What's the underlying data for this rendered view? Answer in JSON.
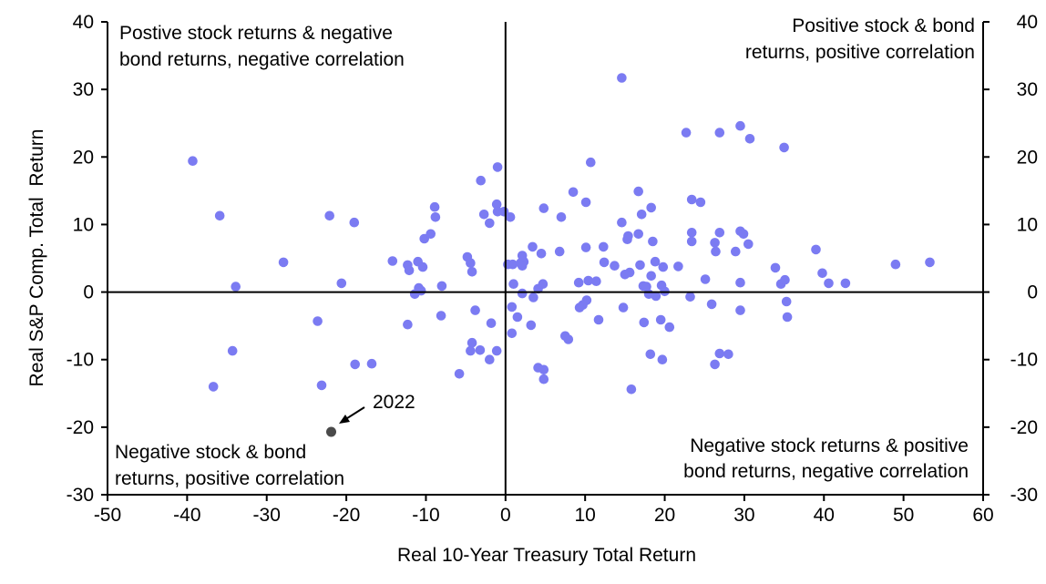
{
  "chart_data": {
    "type": "scatter",
    "title": "",
    "xlabel": "Real 10-Year Treasury Total Return",
    "ylabel": "Real S&P Comp. Total  Return",
    "xlim": [
      -50,
      60
    ],
    "ylim": [
      -30,
      40
    ],
    "x_ticks": [
      "-50",
      "-40",
      "-30",
      "-20",
      "-10",
      "0",
      "10",
      "20",
      "30",
      "40",
      "50",
      "60"
    ],
    "y_ticks": [
      "40",
      "30",
      "20",
      "10",
      "0",
      "-10",
      "-20",
      "-30"
    ],
    "y_ticks_right": [
      "40",
      "30",
      "20",
      "10",
      "0",
      "-10",
      "-20",
      "-30"
    ],
    "grid": false,
    "colors": {
      "points": "#7B7BF2",
      "highlight": "#4a4a4a",
      "axis": "#000000"
    },
    "quadrant_labels": {
      "top_left": [
        "Postive stock returns & negative",
        "bond returns, negative correlation"
      ],
      "top_right": [
        "Positive stock & bond",
        "returns, positive correlation"
      ],
      "bottom_left": [
        "Negative stock & bond",
        "returns, positive correlation"
      ],
      "bottom_right": [
        "Negative stock returns & positive",
        "bond returns, negative correlation"
      ]
    },
    "highlight": {
      "label": "2022",
      "x": -21.9,
      "y": -20.7
    },
    "points": [
      [
        -39.3,
        19.4
      ],
      [
        -35.9,
        11.3
      ],
      [
        -33.9,
        0.8
      ],
      [
        -27.9,
        4.4
      ],
      [
        -22.1,
        11.3
      ],
      [
        -20.6,
        1.3
      ],
      [
        -19.0,
        10.3
      ],
      [
        -23.6,
        -4.3
      ],
      [
        -36.7,
        -14.0
      ],
      [
        -34.3,
        -8.7
      ],
      [
        -23.1,
        -13.8
      ],
      [
        -18.9,
        -10.7
      ],
      [
        -16.8,
        -10.6
      ],
      [
        -14.2,
        4.6
      ],
      [
        -12.3,
        4.0
      ],
      [
        -12.1,
        3.2
      ],
      [
        -11.0,
        4.5
      ],
      [
        -10.9,
        0.6
      ],
      [
        -10.6,
        0.2
      ],
      [
        -10.4,
        3.7
      ],
      [
        -11.4,
        -0.3
      ],
      [
        -12.3,
        -4.8
      ],
      [
        -10.2,
        7.9
      ],
      [
        -9.4,
        8.6
      ],
      [
        -8.9,
        12.6
      ],
      [
        -8.8,
        11.1
      ],
      [
        -8.0,
        0.9
      ],
      [
        -8.1,
        -3.5
      ],
      [
        -4.8,
        5.2
      ],
      [
        -4.4,
        4.3
      ],
      [
        -4.2,
        3.0
      ],
      [
        -3.8,
        -2.7
      ],
      [
        -4.2,
        -7.5
      ],
      [
        -4.4,
        -8.7
      ],
      [
        -3.2,
        -8.6
      ],
      [
        -5.8,
        -12.1
      ],
      [
        -2.0,
        -10.0
      ],
      [
        -1.8,
        -4.6
      ],
      [
        -1.1,
        -8.7
      ],
      [
        -3.1,
        16.5
      ],
      [
        -1.0,
        18.5
      ],
      [
        -2.7,
        11.5
      ],
      [
        -2.0,
        10.2
      ],
      [
        -1.1,
        13.0
      ],
      [
        -1.0,
        11.9
      ],
      [
        -0.2,
        11.9
      ],
      [
        0.6,
        11.1
      ],
      [
        0.3,
        4.1
      ],
      [
        0.9,
        4.1
      ],
      [
        1.9,
        4.3
      ],
      [
        2.1,
        5.4
      ],
      [
        2.3,
        4.5
      ],
      [
        2.1,
        3.9
      ],
      [
        3.4,
        6.7
      ],
      [
        4.5,
        5.7
      ],
      [
        3.5,
        -0.8
      ],
      [
        4.1,
        0.5
      ],
      [
        2.1,
        -0.2
      ],
      [
        1.0,
        1.2
      ],
      [
        4.7,
        1.2
      ],
      [
        0.8,
        -2.2
      ],
      [
        1.5,
        -3.7
      ],
      [
        3.2,
        -4.9
      ],
      [
        0.8,
        -6.1
      ],
      [
        4.1,
        -11.2
      ],
      [
        4.8,
        -11.5
      ],
      [
        4.8,
        -12.9
      ],
      [
        4.8,
        12.4
      ],
      [
        7.0,
        11.1
      ],
      [
        8.5,
        14.8
      ],
      [
        10.1,
        13.3
      ],
      [
        10.7,
        19.2
      ],
      [
        6.8,
        6.0
      ],
      [
        10.1,
        6.6
      ],
      [
        12.3,
        6.7
      ],
      [
        10.4,
        1.7
      ],
      [
        11.4,
        1.6
      ],
      [
        9.2,
        1.4
      ],
      [
        10.2,
        -1.2
      ],
      [
        9.7,
        -1.9
      ],
      [
        9.3,
        -2.3
      ],
      [
        11.7,
        -4.1
      ],
      [
        7.5,
        -6.5
      ],
      [
        7.9,
        -7.0
      ],
      [
        14.6,
        31.7
      ],
      [
        12.4,
        4.4
      ],
      [
        13.7,
        3.9
      ],
      [
        14.6,
        10.3
      ],
      [
        15.3,
        7.8
      ],
      [
        15.4,
        8.3
      ],
      [
        15.6,
        2.9
      ],
      [
        15.0,
        2.6
      ],
      [
        14.8,
        -2.3
      ],
      [
        15.8,
        -14.4
      ],
      [
        16.7,
        14.9
      ],
      [
        17.1,
        11.5
      ],
      [
        18.3,
        12.5
      ],
      [
        16.7,
        8.6
      ],
      [
        18.5,
        7.5
      ],
      [
        16.9,
        4.0
      ],
      [
        18.8,
        4.5
      ],
      [
        17.3,
        0.9
      ],
      [
        17.7,
        0.8
      ],
      [
        18.0,
        -0.3
      ],
      [
        18.9,
        -0.6
      ],
      [
        19.6,
        1.0
      ],
      [
        18.3,
        2.4
      ],
      [
        19.8,
        3.7
      ],
      [
        20.0,
        0.1
      ],
      [
        17.4,
        -4.5
      ],
      [
        19.5,
        -4.1
      ],
      [
        20.6,
        -5.2
      ],
      [
        18.2,
        -9.2
      ],
      [
        19.7,
        -10.0
      ],
      [
        21.7,
        3.8
      ],
      [
        22.7,
        23.6
      ],
      [
        23.4,
        13.7
      ],
      [
        24.5,
        13.3
      ],
      [
        23.4,
        8.8
      ],
      [
        23.4,
        7.5
      ],
      [
        23.2,
        -0.7
      ],
      [
        25.1,
        1.9
      ],
      [
        25.9,
        -1.8
      ],
      [
        26.3,
        7.3
      ],
      [
        26.4,
        6.0
      ],
      [
        26.9,
        8.8
      ],
      [
        26.9,
        23.6
      ],
      [
        26.3,
        -10.7
      ],
      [
        26.9,
        -9.1
      ],
      [
        28.0,
        -9.2
      ],
      [
        28.9,
        6.0
      ],
      [
        29.5,
        24.6
      ],
      [
        29.5,
        9.0
      ],
      [
        29.9,
        8.6
      ],
      [
        29.5,
        1.4
      ],
      [
        29.5,
        -2.7
      ],
      [
        30.7,
        22.7
      ],
      [
        30.5,
        7.1
      ],
      [
        33.9,
        3.6
      ],
      [
        34.6,
        1.2
      ],
      [
        35.3,
        -1.4
      ],
      [
        35.0,
        21.4
      ],
      [
        35.1,
        1.8
      ],
      [
        35.4,
        -3.7
      ],
      [
        39.0,
        6.3
      ],
      [
        39.8,
        2.8
      ],
      [
        40.6,
        1.3
      ],
      [
        42.7,
        1.3
      ],
      [
        49.0,
        4.1
      ],
      [
        53.3,
        4.4
      ]
    ]
  }
}
